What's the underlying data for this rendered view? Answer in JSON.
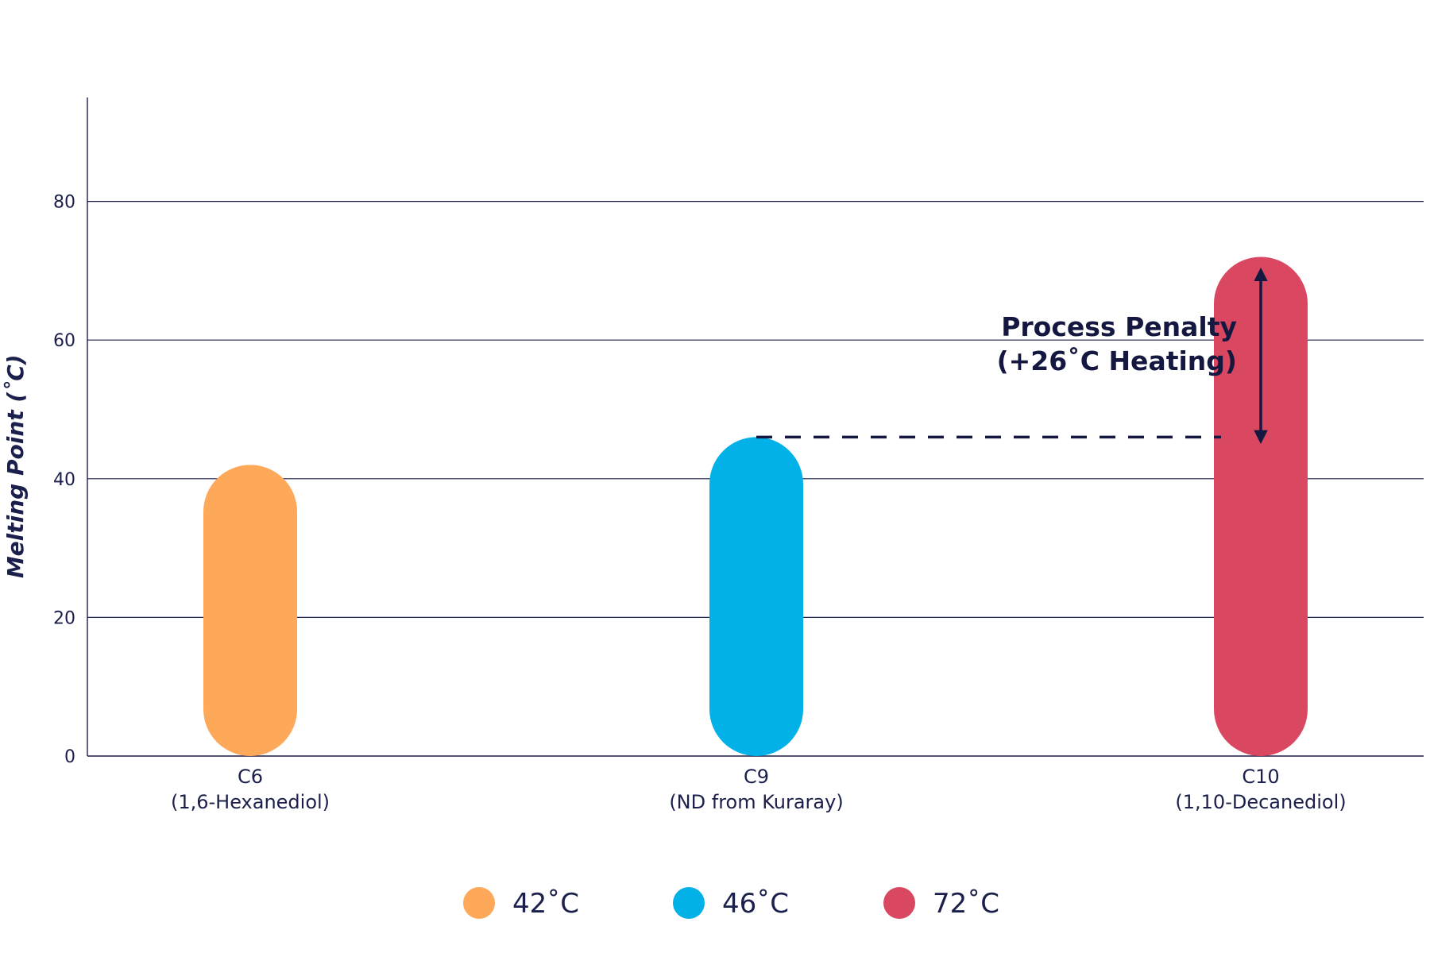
{
  "chart_data": {
    "type": "bar",
    "categories": [
      "C6",
      "C9",
      "C10"
    ],
    "category_sublabels": [
      "(1,6-Hexanediol)",
      "(ND from Kuraray)",
      "(1,10-Decanediol)"
    ],
    "values": [
      42,
      46,
      72
    ],
    "colors": [
      "#fea85a",
      "#02b1e8",
      "#d94860"
    ],
    "ylabel": "Melting Point (˚C)",
    "ylim": [
      0,
      95
    ],
    "yticks": [
      0,
      20,
      40,
      60,
      80
    ],
    "grid": true,
    "legend": {
      "placement": "bottom-center",
      "entries": [
        "42˚C",
        "46˚C",
        "72˚C"
      ]
    },
    "annotation": {
      "lines": [
        "Process Penalty",
        "(+26˚C Heating)"
      ],
      "from_value": 46,
      "to_value": 72,
      "color": "#14173f"
    },
    "axis_color": "#1b1f4b"
  }
}
